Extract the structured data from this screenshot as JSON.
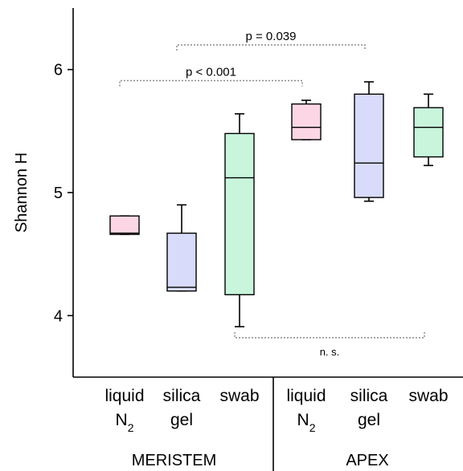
{
  "chart_data": {
    "type": "box",
    "ylabel": "Shannon H",
    "ylim": [
      3.5,
      6.5
    ],
    "yticks": [
      4,
      5,
      6
    ],
    "groups": [
      {
        "name": "MERISTEM",
        "categories": [
          0,
          1,
          2
        ]
      },
      {
        "name": "APEX",
        "categories": [
          3,
          4,
          5
        ]
      }
    ],
    "categories": [
      {
        "line1": "liquid",
        "line2": "N",
        "sub": "2",
        "color": "#fcd6e4"
      },
      {
        "line1": "silica",
        "line2": "gel",
        "sub": "",
        "color": "#d8dcfa"
      },
      {
        "line1": "swab",
        "line2": "",
        "sub": "",
        "color": "#c8f5dc"
      },
      {
        "line1": "liquid",
        "line2": "N",
        "sub": "2",
        "color": "#fcd6e4"
      },
      {
        "line1": "silica",
        "line2": "gel",
        "sub": "",
        "color": "#d8dcfa"
      },
      {
        "line1": "swab",
        "line2": "",
        "sub": "",
        "color": "#c8f5dc"
      }
    ],
    "boxes": [
      {
        "min": 4.66,
        "q1": 4.66,
        "median": 4.67,
        "q3": 4.81,
        "max": 4.81
      },
      {
        "min": 4.2,
        "q1": 4.2,
        "median": 4.23,
        "q3": 4.67,
        "max": 4.9
      },
      {
        "min": 3.91,
        "q1": 4.17,
        "median": 5.12,
        "q3": 5.48,
        "max": 5.64
      },
      {
        "min": 5.43,
        "q1": 5.43,
        "median": 5.53,
        "q3": 5.72,
        "max": 5.75
      },
      {
        "min": 4.93,
        "q1": 4.96,
        "median": 5.24,
        "q3": 5.8,
        "max": 5.9
      },
      {
        "min": 5.22,
        "q1": 5.29,
        "median": 5.53,
        "q3": 5.69,
        "max": 5.8
      }
    ],
    "annotations": [
      {
        "text": "p = 0.039",
        "from": 1,
        "to": 4,
        "y": 6.2,
        "direction": "down"
      },
      {
        "text": "p < 0.001",
        "from": 0,
        "to": 3,
        "y": 5.91,
        "direction": "down"
      },
      {
        "text": "n. s.",
        "from": 2,
        "to": 5,
        "y": 3.82,
        "direction": "up"
      }
    ]
  }
}
